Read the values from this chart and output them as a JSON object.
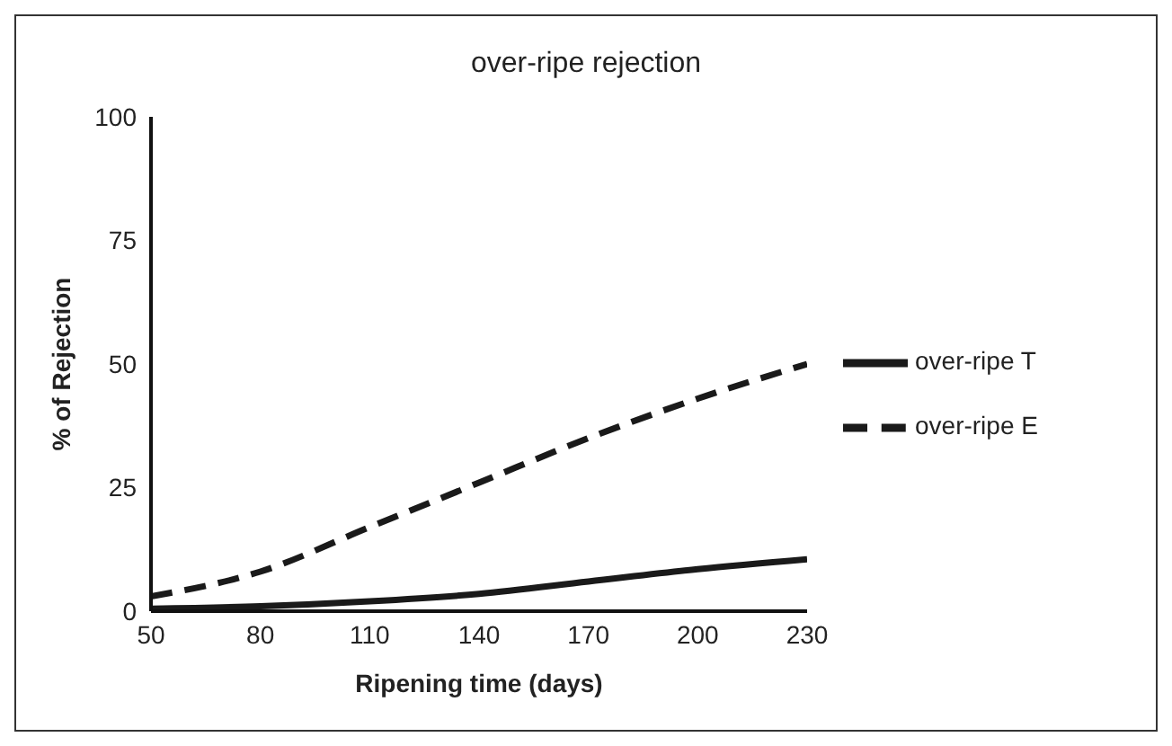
{
  "chart_data": {
    "type": "line",
    "title": "over-ripe rejection",
    "xlabel": "Ripening time (days)",
    "ylabel": "% of Rejection",
    "x": [
      50,
      80,
      110,
      140,
      170,
      200,
      230
    ],
    "series": [
      {
        "name": "over-ripe T",
        "color": "#1a1a1a",
        "line_style": "solid",
        "values": [
          0.5,
          1,
          2,
          3.5,
          6,
          8.5,
          10.5
        ]
      },
      {
        "name": "over-ripe E",
        "color": "#1a1a1a",
        "line_style": "dashed",
        "values": [
          3,
          8,
          17,
          26,
          35,
          43,
          50
        ]
      }
    ],
    "xlim": [
      50,
      230
    ],
    "xticks": [
      50,
      80,
      110,
      140,
      170,
      200,
      230
    ],
    "ylim": [
      0,
      100
    ],
    "yticks": [
      0,
      25,
      50,
      75,
      100
    ],
    "legend": "right",
    "marker": "none"
  }
}
